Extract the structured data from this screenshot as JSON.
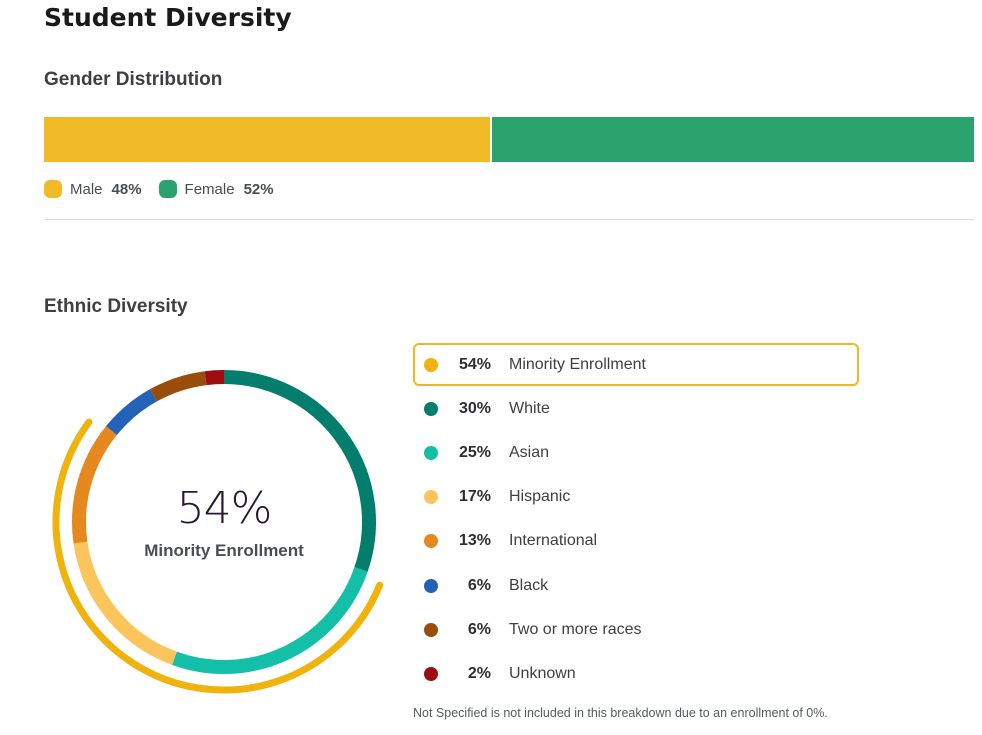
{
  "title": "Student Diversity",
  "gender": {
    "title": "Gender Distribution",
    "items": [
      {
        "label": "Male",
        "value": "48%",
        "pct": 48,
        "color": "#f0bb27"
      },
      {
        "label": "Female",
        "value": "52%",
        "pct": 52,
        "color": "#2ba36f"
      }
    ]
  },
  "ethnic": {
    "title": "Ethnic Diversity",
    "center_value": "54%",
    "center_label": "Minority Enrollment",
    "minority_pct": 54,
    "minority_color": "#f0b20c",
    "footnote": "Not Specified is not included in this breakdown due to an enrollment of 0%."
  },
  "chart_data": {
    "type": "pie",
    "title": "Ethnic Diversity",
    "categories": [
      "Minority Enrollment",
      "White",
      "Asian",
      "Hispanic",
      "International",
      "Black",
      "Two or more races",
      "Unknown"
    ],
    "values": [
      54,
      30,
      25,
      17,
      13,
      6,
      6,
      2
    ],
    "labels": [
      "54%",
      "30%",
      "25%",
      "17%",
      "13%",
      "6%",
      "6%",
      "2%"
    ],
    "colors": [
      "#f0b20c",
      "#037d6c",
      "#14bfa8",
      "#fcc45c",
      "#e5881e",
      "#2462b7",
      "#9a4d0a",
      "#9b0d10"
    ],
    "ring_order": [
      "White",
      "Asian",
      "Hispanic",
      "International",
      "Black",
      "Two or more races",
      "Unknown"
    ],
    "highlighted": "Minority Enrollment"
  }
}
